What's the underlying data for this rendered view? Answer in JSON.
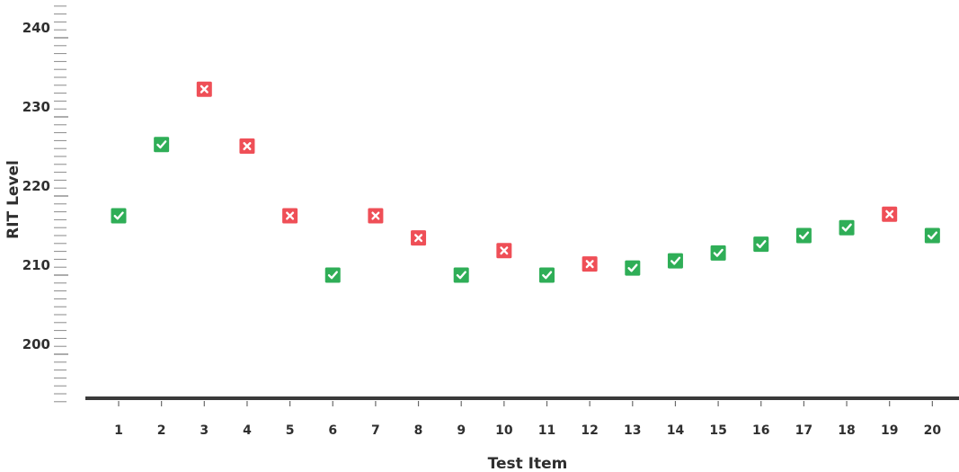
{
  "chart_data": {
    "type": "scatter",
    "xlabel": "Test Item",
    "ylabel": "RIT Level",
    "x_ticks": [
      "1",
      "2",
      "3",
      "4",
      "5",
      "6",
      "7",
      "8",
      "9",
      "10",
      "11",
      "12",
      "13",
      "14",
      "15",
      "16",
      "17",
      "18",
      "19",
      "20"
    ],
    "y_ticks": [
      "200",
      "210",
      "220",
      "230",
      "240"
    ],
    "ylim": [
      194,
      244
    ],
    "points": [
      {
        "x": 1,
        "y": 217.5,
        "correct": true
      },
      {
        "x": 2,
        "y": 226.5,
        "correct": true
      },
      {
        "x": 3,
        "y": 233.5,
        "correct": false
      },
      {
        "x": 4,
        "y": 226.3,
        "correct": false
      },
      {
        "x": 5,
        "y": 217.5,
        "correct": false
      },
      {
        "x": 6,
        "y": 210,
        "correct": true
      },
      {
        "x": 7,
        "y": 217.5,
        "correct": false
      },
      {
        "x": 8,
        "y": 214.7,
        "correct": false
      },
      {
        "x": 9,
        "y": 210,
        "correct": true
      },
      {
        "x": 10,
        "y": 213.1,
        "correct": false
      },
      {
        "x": 11,
        "y": 210,
        "correct": true
      },
      {
        "x": 12,
        "y": 211.4,
        "correct": false
      },
      {
        "x": 13,
        "y": 210.9,
        "correct": true
      },
      {
        "x": 14,
        "y": 211.8,
        "correct": true
      },
      {
        "x": 15,
        "y": 212.8,
        "correct": true
      },
      {
        "x": 16,
        "y": 213.9,
        "correct": true
      },
      {
        "x": 17,
        "y": 215,
        "correct": true
      },
      {
        "x": 18,
        "y": 216,
        "correct": true
      },
      {
        "x": 19,
        "y": 217.7,
        "correct": false
      },
      {
        "x": 20,
        "y": 215,
        "correct": true
      }
    ],
    "colors": {
      "correct": "#2fae57",
      "incorrect": "#ef4f57",
      "axis": "#3a3a3a"
    }
  }
}
